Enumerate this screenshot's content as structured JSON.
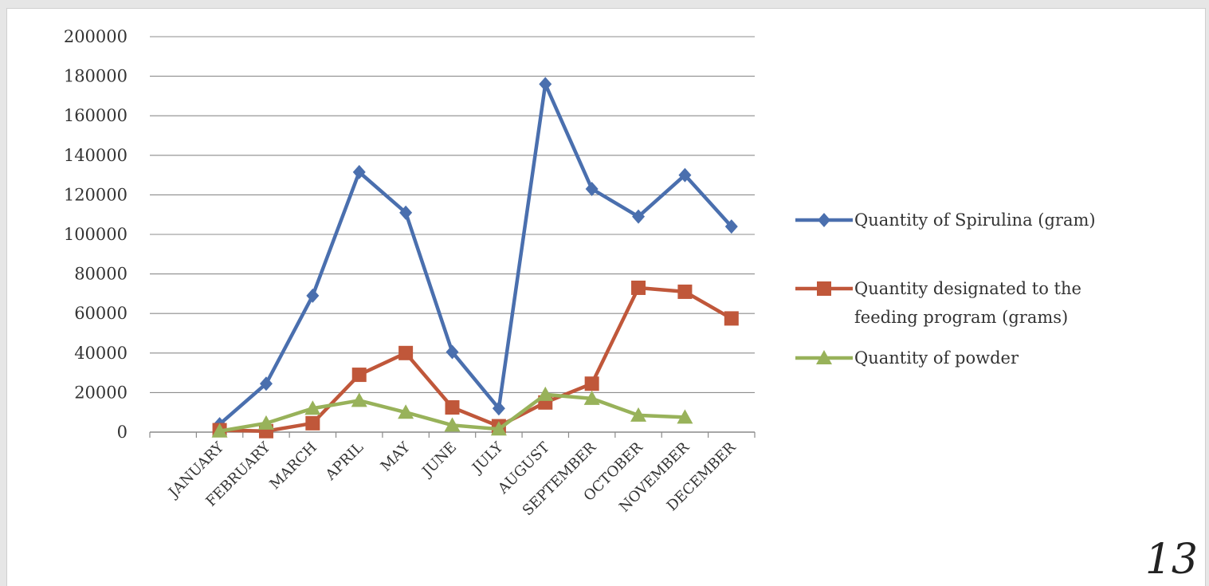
{
  "page": {
    "number": "13"
  },
  "chart_data": {
    "type": "line",
    "title": "",
    "xlabel": "",
    "ylabel": "",
    "ylim": [
      0,
      200000
    ],
    "yticks": [
      0,
      20000,
      40000,
      60000,
      80000,
      100000,
      120000,
      140000,
      160000,
      180000,
      200000
    ],
    "grid": true,
    "legend_position": "right",
    "categories": [
      "JANUARY",
      "FEBRUARY",
      "MARCH",
      "APRIL",
      "MAY",
      "JUNE",
      "JULY",
      "AUGUST",
      "SEPTEMBER",
      "OCTOBER",
      "NOVEMBER",
      "DECEMBER"
    ],
    "series": [
      {
        "name": "Quantity of Spirulina (gram)",
        "legend_lines": [
          "Quantity of Spirulina (gram)"
        ],
        "color": "#4a6fae",
        "marker": "diamond",
        "values": [
          4000,
          24500,
          69000,
          131500,
          111000,
          40500,
          12000,
          176000,
          123000,
          109000,
          130000,
          104000
        ]
      },
      {
        "name": "Quantity designated to the feeding program (grams)",
        "legend_lines": [
          "Quantity designated to the",
          "feeding program (grams)"
        ],
        "color": "#c0573a",
        "marker": "square",
        "values": [
          1000,
          500,
          4500,
          29000,
          40000,
          12500,
          3000,
          15000,
          24500,
          73000,
          71000,
          57500
        ]
      },
      {
        "name": "Quantity of powder",
        "legend_lines": [
          "Quantity of powder"
        ],
        "color": "#98b25a",
        "marker": "triangle",
        "values": [
          500,
          4500,
          12000,
          16000,
          10000,
          3500,
          1500,
          19000,
          17000,
          8500,
          7500,
          null
        ]
      }
    ]
  }
}
